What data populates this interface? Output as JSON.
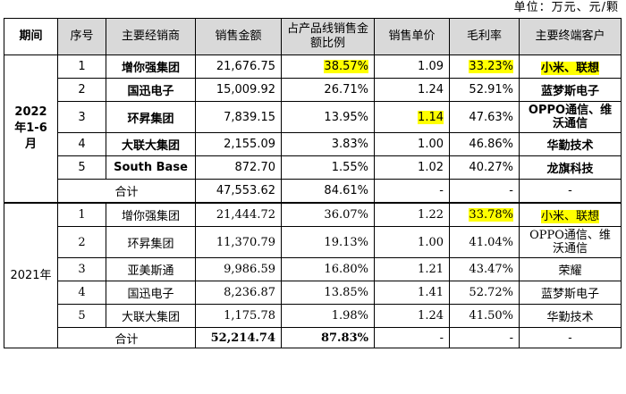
{
  "unit_note": "单位：万元、元/颗",
  "headers": {
    "period": "期间",
    "no": "序号",
    "distributor": "主要经销商",
    "sales": "销售金额",
    "share": "占产品线销售金额比例",
    "price": "销售单价",
    "margin": "毛利率",
    "customer": "主要终端客户"
  },
  "period_2022": "2022年1-6月",
  "period_2021": "2021年",
  "rows_2022": [
    {
      "no": "1",
      "distributor": "增你强集团",
      "sales": "21,676.75",
      "share": "38.57%",
      "price": "1.09",
      "margin": "33.23%",
      "customer": "小米、联想"
    },
    {
      "no": "2",
      "distributor": "国迅电子",
      "sales": "15,009.92",
      "share": "26.71%",
      "price": "1.24",
      "margin": "52.91%",
      "customer": "蓝梦斯电子"
    },
    {
      "no": "3",
      "distributor": "环昇集团",
      "sales": "7,839.15",
      "share": "13.95%",
      "price": "1.14",
      "margin": "47.63%",
      "customer": "OPPO通信、维沃通信"
    },
    {
      "no": "4",
      "distributor": "大联大集团",
      "sales": "2,155.09",
      "share": "3.83%",
      "price": "1.00",
      "margin": "46.86%",
      "customer": "华勤技术"
    },
    {
      "no": "5",
      "distributor": "South Base",
      "sales": "872.70",
      "share": "1.55%",
      "price": "1.02",
      "margin": "40.27%",
      "customer": "龙旗科技"
    }
  ],
  "total_2022": {
    "label": "合计",
    "sales": "47,553.62",
    "share": "84.61%",
    "price": "-",
    "margin": "-",
    "customer": "-"
  },
  "rows_2021": [
    {
      "no": "1",
      "distributor": "增你强集团",
      "sales": "21,444.72",
      "share": "36.07%",
      "price": "1.22",
      "margin": "33.78%",
      "customer": "小米、联想"
    },
    {
      "no": "2",
      "distributor": "环昇集团",
      "sales": "11,370.79",
      "share": "19.13%",
      "price": "1.00",
      "margin": "41.04%",
      "customer": "OPPO通信、维沃通信"
    },
    {
      "no": "3",
      "distributor": "亚美斯通",
      "sales": "9,986.59",
      "share": "16.80%",
      "price": "1.21",
      "margin": "43.47%",
      "customer": "荣耀"
    },
    {
      "no": "4",
      "distributor": "国迅电子",
      "sales": "8,236.87",
      "share": "13.85%",
      "price": "1.41",
      "margin": "52.72%",
      "customer": "蓝梦斯电子"
    },
    {
      "no": "5",
      "distributor": "大联大集团",
      "sales": "1,175.78",
      "share": "1.98%",
      "price": "1.24",
      "margin": "41.50%",
      "customer": "华勤技术"
    }
  ],
  "total_2021": {
    "label": "合计",
    "sales": "52,214.74",
    "share": "87.83%",
    "price": "-",
    "margin": "-",
    "customer": "-"
  },
  "highlight_color": "#ffff00",
  "header_bg": "#d9d9d9"
}
